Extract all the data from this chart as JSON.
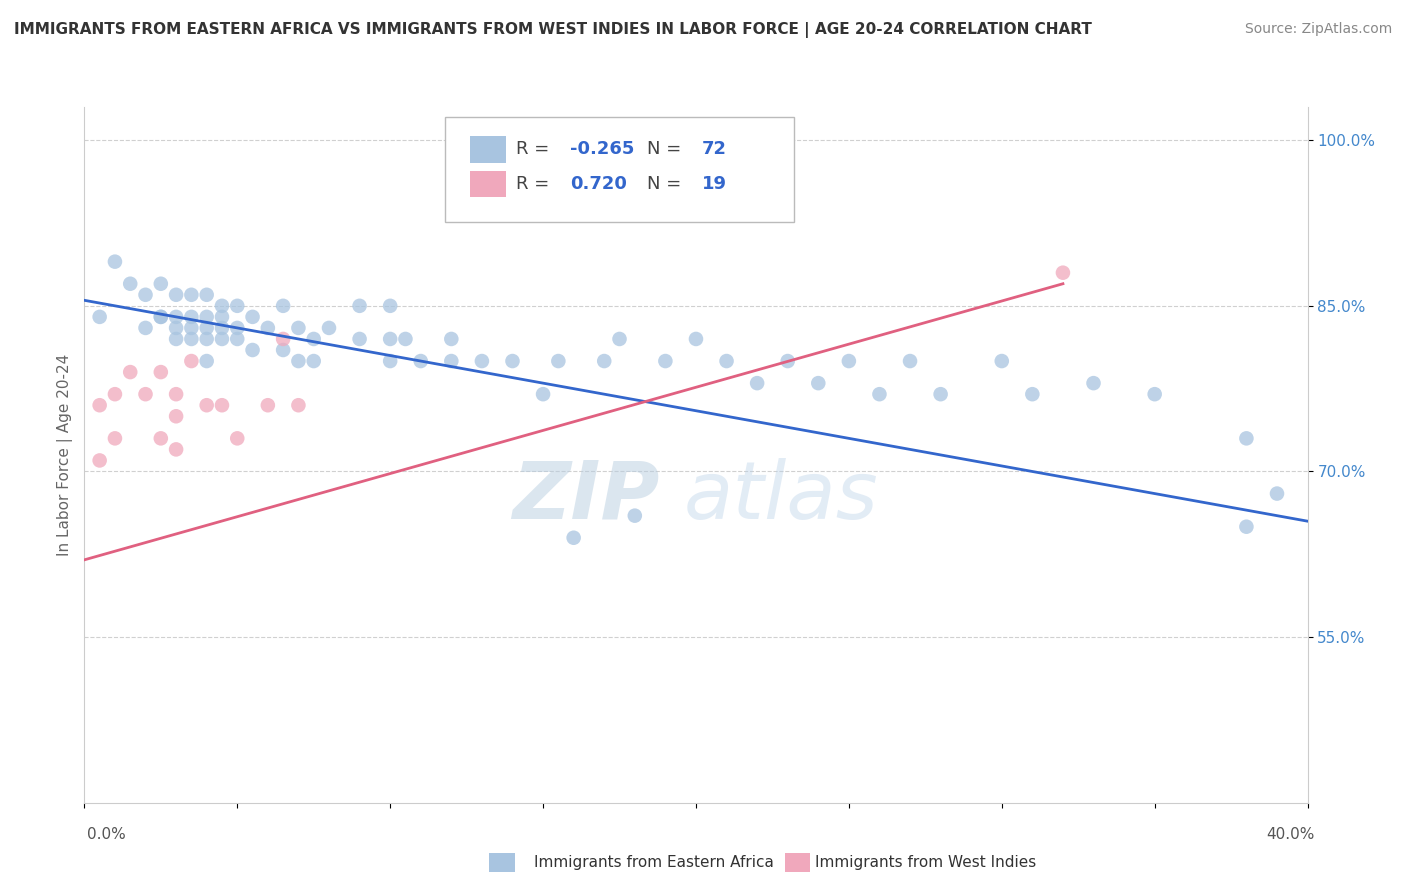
{
  "title": "IMMIGRANTS FROM EASTERN AFRICA VS IMMIGRANTS FROM WEST INDIES IN LABOR FORCE | AGE 20-24 CORRELATION CHART",
  "source": "Source: ZipAtlas.com",
  "ylabel": "In Labor Force | Age 20-24",
  "xlim": [
    0.0,
    0.4
  ],
  "ylim": [
    0.4,
    1.03
  ],
  "ytick_vals": [
    0.55,
    0.7,
    0.85,
    1.0
  ],
  "ytick_labels": [
    "55.0%",
    "70.0%",
    "85.0%",
    "100.0%"
  ],
  "blue_scatter_x": [
    0.005,
    0.01,
    0.015,
    0.02,
    0.02,
    0.025,
    0.025,
    0.025,
    0.03,
    0.03,
    0.03,
    0.03,
    0.035,
    0.035,
    0.035,
    0.035,
    0.04,
    0.04,
    0.04,
    0.04,
    0.04,
    0.045,
    0.045,
    0.045,
    0.045,
    0.05,
    0.05,
    0.05,
    0.055,
    0.055,
    0.06,
    0.065,
    0.065,
    0.07,
    0.07,
    0.075,
    0.075,
    0.08,
    0.09,
    0.09,
    0.1,
    0.1,
    0.1,
    0.105,
    0.11,
    0.12,
    0.12,
    0.13,
    0.14,
    0.15,
    0.155,
    0.16,
    0.17,
    0.175,
    0.18,
    0.19,
    0.2,
    0.21,
    0.22,
    0.23,
    0.24,
    0.25,
    0.26,
    0.27,
    0.28,
    0.3,
    0.31,
    0.33,
    0.35,
    0.38,
    0.38,
    0.39
  ],
  "blue_scatter_y": [
    0.84,
    0.89,
    0.87,
    0.83,
    0.86,
    0.84,
    0.84,
    0.87,
    0.82,
    0.83,
    0.84,
    0.86,
    0.82,
    0.83,
    0.84,
    0.86,
    0.8,
    0.82,
    0.83,
    0.84,
    0.86,
    0.82,
    0.83,
    0.84,
    0.85,
    0.82,
    0.83,
    0.85,
    0.81,
    0.84,
    0.83,
    0.81,
    0.85,
    0.8,
    0.83,
    0.8,
    0.82,
    0.83,
    0.82,
    0.85,
    0.8,
    0.82,
    0.85,
    0.82,
    0.8,
    0.82,
    0.8,
    0.8,
    0.8,
    0.77,
    0.8,
    0.64,
    0.8,
    0.82,
    0.66,
    0.8,
    0.82,
    0.8,
    0.78,
    0.8,
    0.78,
    0.8,
    0.77,
    0.8,
    0.77,
    0.8,
    0.77,
    0.78,
    0.77,
    0.73,
    0.65,
    0.68
  ],
  "pink_scatter_x": [
    0.005,
    0.005,
    0.01,
    0.01,
    0.015,
    0.02,
    0.025,
    0.025,
    0.03,
    0.03,
    0.03,
    0.035,
    0.04,
    0.045,
    0.05,
    0.06,
    0.065,
    0.07,
    0.32
  ],
  "pink_scatter_y": [
    0.71,
    0.76,
    0.73,
    0.77,
    0.79,
    0.77,
    0.73,
    0.79,
    0.72,
    0.75,
    0.77,
    0.8,
    0.76,
    0.76,
    0.73,
    0.76,
    0.82,
    0.76,
    0.88
  ],
  "blue_line_x": [
    0.0,
    0.4
  ],
  "blue_line_y": [
    0.855,
    0.655
  ],
  "pink_line_x": [
    0.0,
    0.32
  ],
  "pink_line_y": [
    0.62,
    0.87
  ],
  "watermark_top": "ZIP",
  "watermark_bot": "atlas",
  "legend_r1": "R = -0.265",
  "legend_n1": "N = 72",
  "legend_r2": "R =  0.720",
  "legend_n2": "N = 19",
  "title_fontsize": 11,
  "source_fontsize": 10,
  "label_fontsize": 11,
  "tick_fontsize": 11,
  "blue_dot_color": "#a8c4e0",
  "pink_dot_color": "#f0a8bc",
  "blue_line_color": "#3366cc",
  "pink_line_color": "#e06080",
  "right_tick_color": "#4488cc",
  "grid_color": "#d0d0d0",
  "background_color": "#ffffff"
}
